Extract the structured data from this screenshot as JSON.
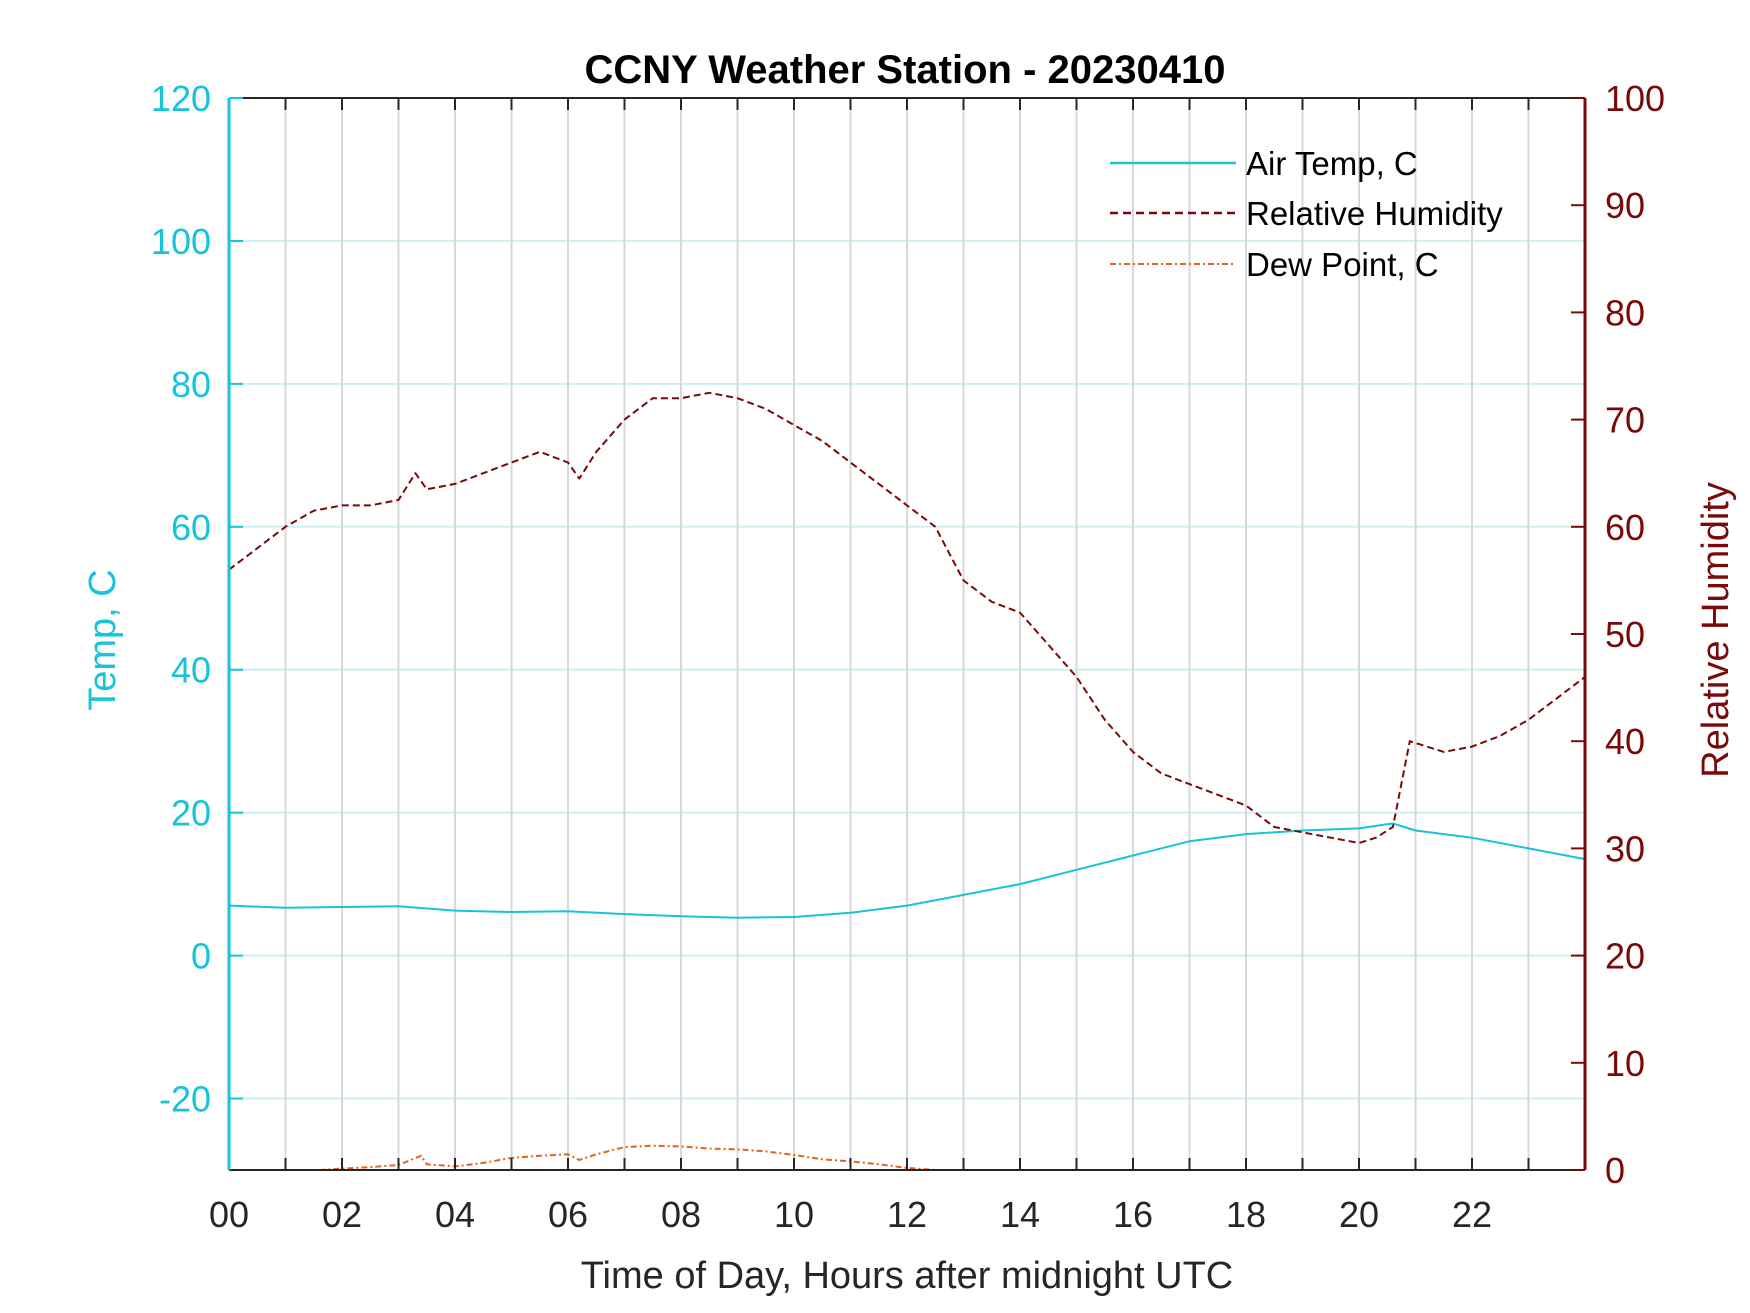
{
  "chart_data": {
    "type": "line",
    "title": "CCNY Weather Station - 20230410",
    "xlabel": "Time of Day, Hours after midnight UTC",
    "ylabel_left": "Temp, C",
    "ylabel_right": "Relative Humidity",
    "xlim": [
      0,
      24
    ],
    "ylim_left": [
      -30,
      120
    ],
    "ylim_right": [
      0,
      100
    ],
    "x_ticks": [
      0,
      2,
      4,
      6,
      8,
      10,
      12,
      14,
      16,
      18,
      20,
      22
    ],
    "x_tick_labels": [
      "00",
      "02",
      "04",
      "06",
      "08",
      "10",
      "12",
      "14",
      "16",
      "18",
      "20",
      "22"
    ],
    "y_left_ticks": [
      -20,
      0,
      20,
      40,
      60,
      80,
      100,
      120
    ],
    "y_left_tick_labels": [
      "-20",
      "0",
      "20",
      "40",
      "60",
      "80",
      "100",
      "120"
    ],
    "y_right_ticks": [
      0,
      10,
      20,
      30,
      40,
      50,
      60,
      70,
      80,
      90,
      100
    ],
    "y_right_tick_labels": [
      "0",
      "10",
      "20",
      "30",
      "40",
      "50",
      "60",
      "70",
      "80",
      "90",
      "100"
    ],
    "grid": "vertical lines every hour, horizontal lines at left ticks",
    "legend_position": "top-right",
    "series": [
      {
        "name": "Air Temp, C",
        "axis": "left",
        "style": "solid",
        "color": "#17c3d9",
        "x": [
          0,
          1,
          2,
          3,
          4,
          5,
          6,
          7,
          8,
          9,
          10,
          11,
          12,
          13,
          14,
          15,
          16,
          17,
          18,
          19,
          20,
          20.6,
          21,
          22,
          23,
          24
        ],
        "y": [
          7.0,
          6.7,
          6.8,
          6.9,
          6.3,
          6.1,
          6.2,
          5.8,
          5.5,
          5.3,
          5.4,
          6.0,
          7.0,
          8.5,
          10.0,
          12.0,
          14.0,
          16.0,
          17.0,
          17.5,
          17.8,
          18.5,
          17.5,
          16.5,
          15.0,
          13.5
        ]
      },
      {
        "name": "Relative Humidity",
        "axis": "right",
        "style": "dashed",
        "color": "#7a0a0a",
        "x": [
          0,
          0.5,
          1,
          1.5,
          2,
          2.5,
          3,
          3.3,
          3.5,
          4,
          4.5,
          5,
          5.5,
          6,
          6.2,
          6.5,
          7,
          7.5,
          8,
          8.5,
          9,
          9.5,
          10,
          10.5,
          11,
          11.5,
          12,
          12.5,
          13,
          13.5,
          14,
          14.5,
          15,
          15.5,
          16,
          16.5,
          17,
          17.5,
          18,
          18.5,
          19,
          19.5,
          20,
          20.3,
          20.6,
          20.9,
          21.5,
          22,
          22.5,
          23,
          23.5,
          24
        ],
        "y": [
          56,
          58,
          60,
          61.5,
          62,
          62,
          62.5,
          65,
          63.5,
          64,
          65,
          66,
          67,
          66,
          64.5,
          67,
          70,
          72,
          72,
          72.5,
          72,
          71,
          69.5,
          68,
          66,
          64,
          62,
          60,
          55,
          53,
          52,
          49,
          46,
          42,
          39,
          37,
          36,
          35,
          34,
          32,
          31.5,
          31,
          30.5,
          31,
          32,
          40,
          39,
          39.5,
          40.5,
          42,
          44,
          46
        ]
      },
      {
        "name": "Dew Point, C",
        "axis": "left",
        "style": "dash-dot",
        "color": "#e0651f",
        "x": [
          1.6,
          2,
          2.5,
          3,
          3.4,
          3.5,
          4,
          4.5,
          5,
          5.5,
          6,
          6.2,
          6.5,
          7,
          7.5,
          8,
          8.5,
          9,
          9.5,
          10,
          10.5,
          11,
          11.5,
          12,
          12.5
        ],
        "y": [
          -30,
          -29.8,
          -29.6,
          -29.3,
          -28,
          -29.2,
          -29.5,
          -29.0,
          -28.3,
          -28.0,
          -27.8,
          -28.6,
          -27.8,
          -26.8,
          -26.6,
          -26.7,
          -27.0,
          -27.1,
          -27.4,
          -27.9,
          -28.5,
          -28.8,
          -29.2,
          -29.7,
          -30
        ]
      }
    ]
  }
}
